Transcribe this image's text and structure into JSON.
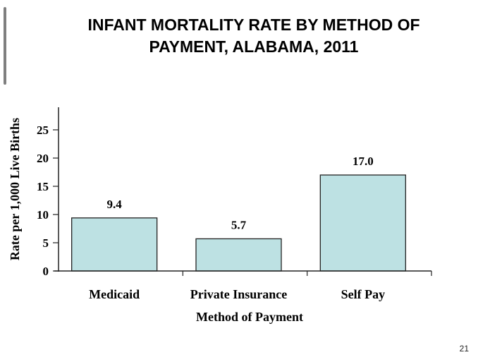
{
  "slide": {
    "title_lines": [
      "INFANT MORTALITY RATE BY METHOD OF",
      "PAYMENT, ALABAMA, 2011"
    ],
    "page_number": "21"
  },
  "chart_data": {
    "type": "bar",
    "title": "INFANT MORTALITY RATE BY METHOD OF PAYMENT, ALABAMA, 2011",
    "categories": [
      "Medicaid",
      "Private Insurance",
      "Self Pay"
    ],
    "values": [
      9.4,
      5.7,
      17.0
    ],
    "data_labels": [
      "9.4",
      "5.7",
      "17.0"
    ],
    "xlabel": "Method of Payment",
    "ylabel": "Rate per 1,000 Live Births",
    "ylim": [
      0,
      29
    ],
    "yticks": [
      0,
      5,
      10,
      15,
      20,
      25
    ],
    "grid": false,
    "legend": "none",
    "colors": {
      "bar_fill": "#bde1e3",
      "bar_stroke": "#222222",
      "axis": "#222222"
    }
  }
}
